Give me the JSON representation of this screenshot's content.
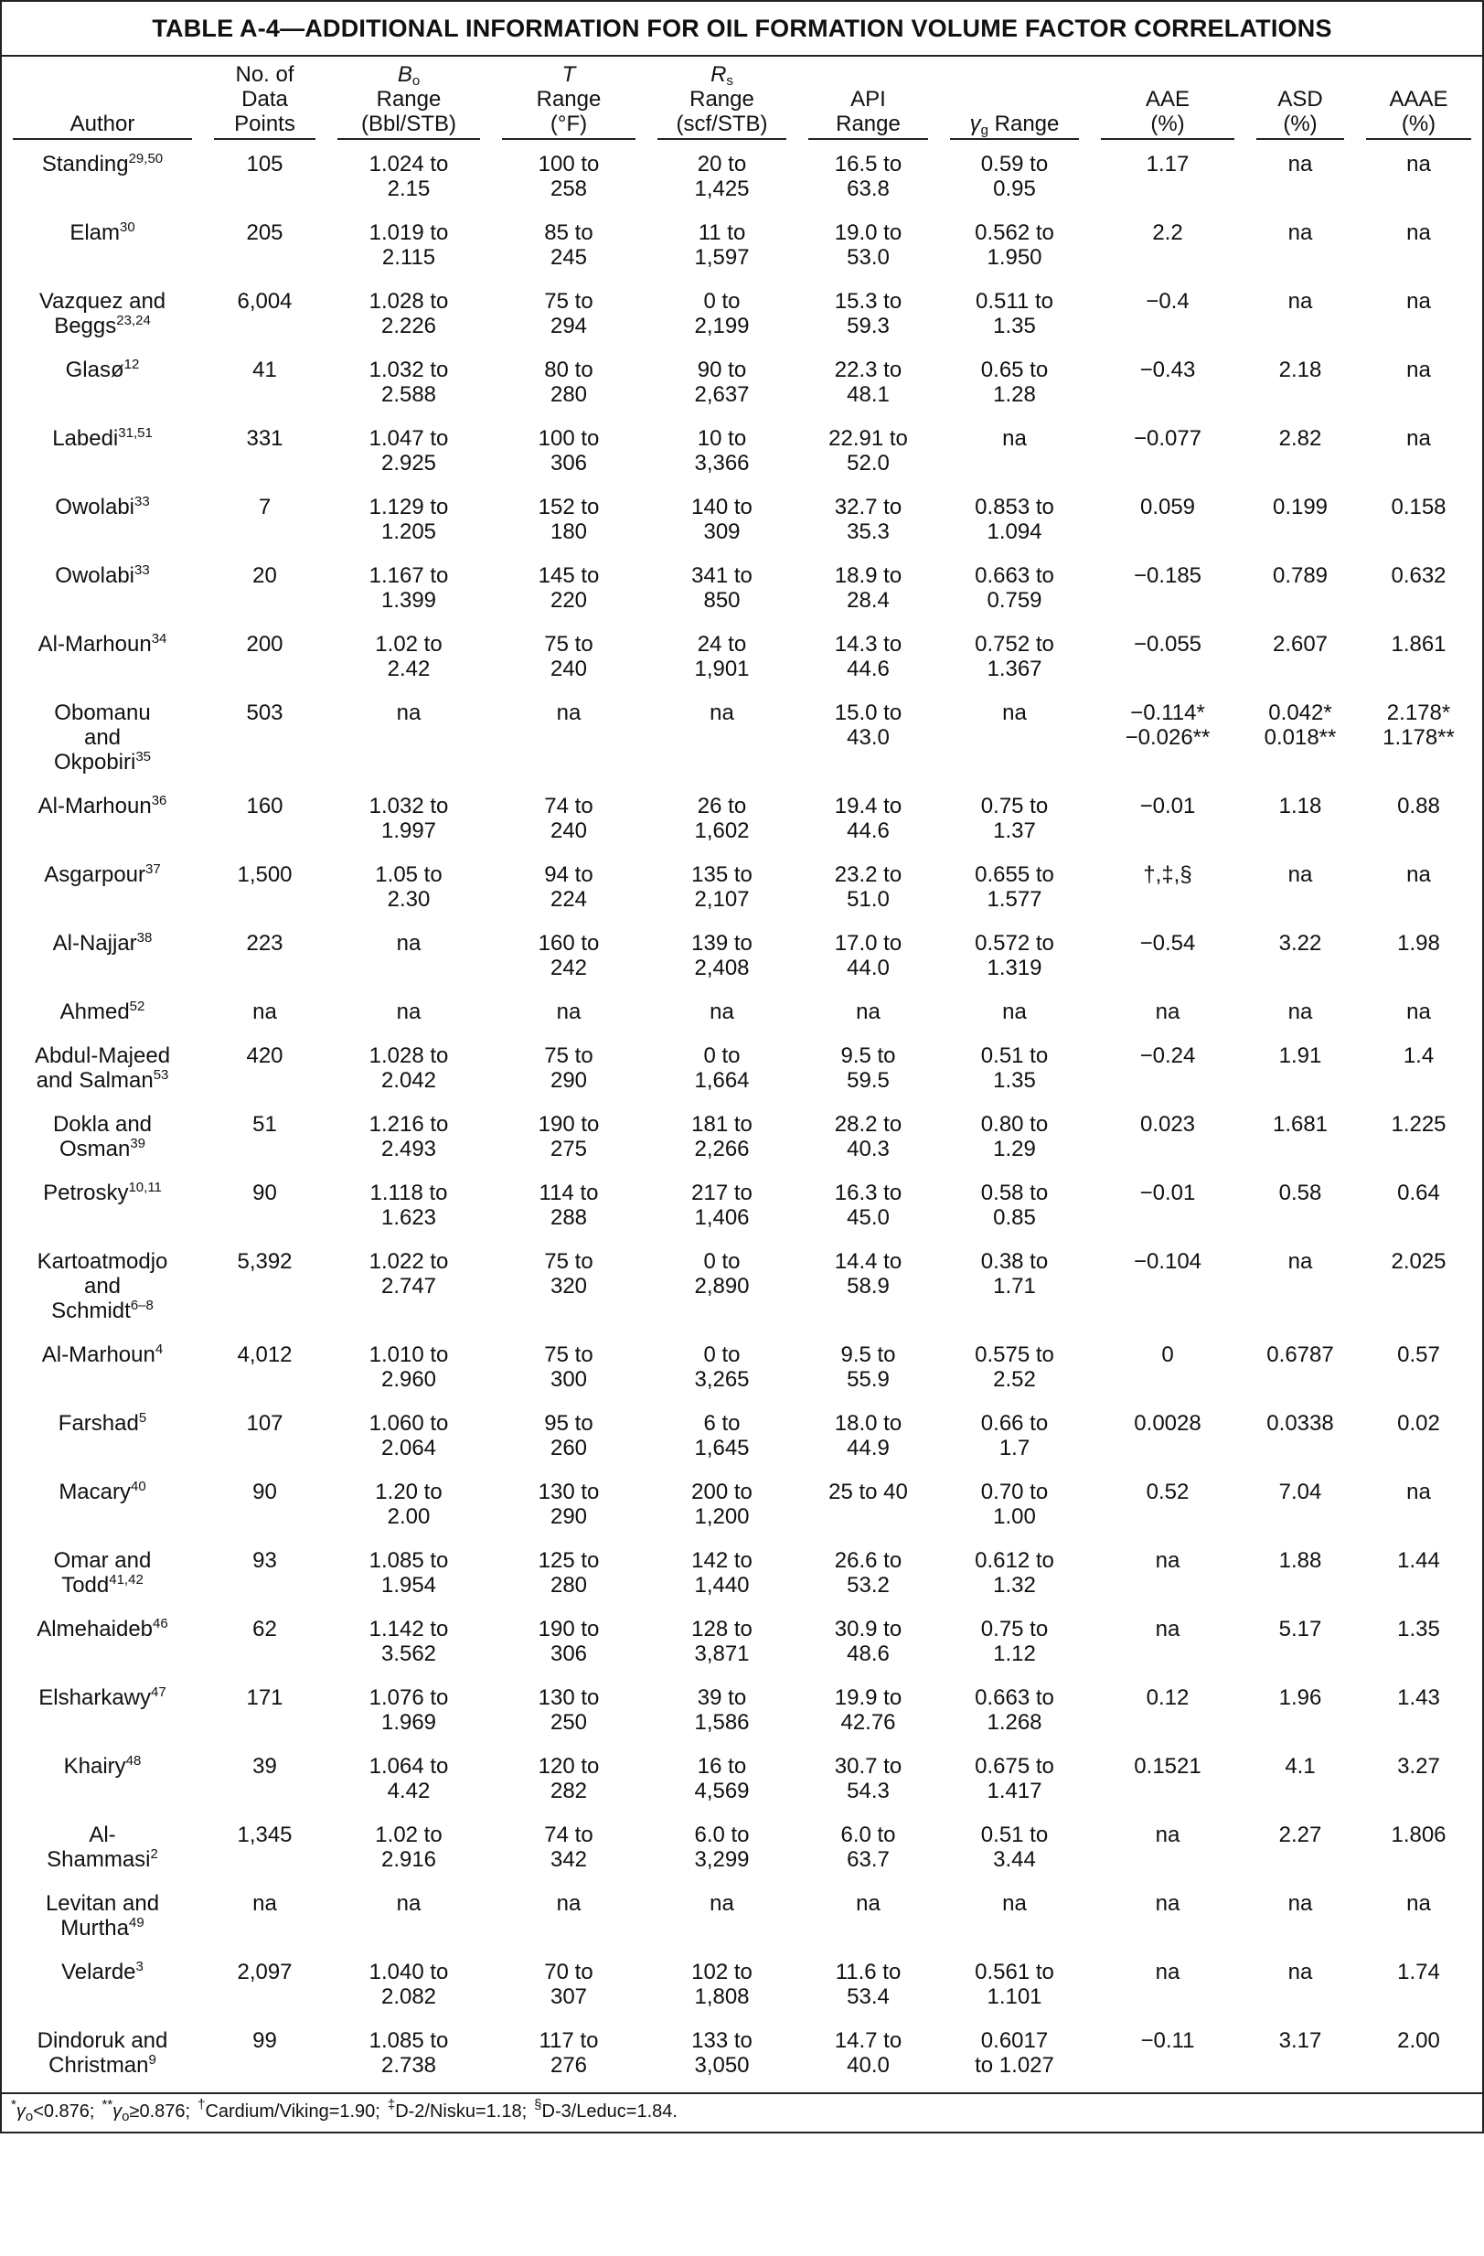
{
  "table": {
    "title": "TABLE A-4—ADDITIONAL INFORMATION FOR OIL FORMATION VOLUME FACTOR CORRELATIONS",
    "headers": [
      {
        "lines": [
          "Author"
        ]
      },
      {
        "lines": [
          "No. of",
          "Data",
          "Points"
        ]
      },
      {
        "symbol": "B",
        "sub": "o",
        "lines": [
          "Range",
          "(Bbl/STB)"
        ]
      },
      {
        "symbol": "T",
        "lines": [
          "Range",
          "(°F)"
        ]
      },
      {
        "symbol": "R",
        "sub": "s",
        "lines": [
          "Range",
          "(scf/STB)"
        ]
      },
      {
        "lines": [
          "API",
          "Range"
        ]
      },
      {
        "symbol": "γ",
        "sub": "g",
        "lines": [
          "Range"
        ]
      },
      {
        "lines": [
          "AAE",
          "(%)"
        ]
      },
      {
        "lines": [
          "ASD",
          "(%)"
        ]
      },
      {
        "lines": [
          "AAAE",
          "(%)"
        ]
      }
    ],
    "rows": [
      {
        "author": {
          "lines": [
            "Standing"
          ],
          "refs": "29,50"
        },
        "cells": [
          "105",
          [
            "1.024 to",
            "2.15"
          ],
          [
            "100 to",
            "258"
          ],
          [
            "20 to",
            "1,425"
          ],
          [
            "16.5 to",
            "63.8"
          ],
          [
            "0.59 to",
            "0.95"
          ],
          "1.17",
          "na",
          "na"
        ]
      },
      {
        "author": {
          "lines": [
            "Elam"
          ],
          "refs": "30"
        },
        "cells": [
          "205",
          [
            "1.019 to",
            "2.115"
          ],
          [
            "85 to",
            "245"
          ],
          [
            "11 to",
            "1,597"
          ],
          [
            "19.0 to",
            "53.0"
          ],
          [
            "0.562 to",
            "1.950"
          ],
          "2.2",
          "na",
          "na"
        ]
      },
      {
        "author": {
          "lines": [
            "Vazquez and",
            "Beggs"
          ],
          "refs": "23,24"
        },
        "cells": [
          "6,004",
          [
            "1.028 to",
            "2.226"
          ],
          [
            "75 to",
            "294"
          ],
          [
            "0 to",
            "2,199"
          ],
          [
            "15.3 to",
            "59.3"
          ],
          [
            "0.511 to",
            "1.35"
          ],
          "−0.4",
          "na",
          "na"
        ]
      },
      {
        "author": {
          "lines": [
            "Glasø"
          ],
          "refs": "12"
        },
        "cells": [
          "41",
          [
            "1.032 to",
            "2.588"
          ],
          [
            "80 to",
            "280"
          ],
          [
            "90 to",
            "2,637"
          ],
          [
            "22.3 to",
            "48.1"
          ],
          [
            "0.65 to",
            "1.28"
          ],
          "−0.43",
          "2.18",
          "na"
        ]
      },
      {
        "author": {
          "lines": [
            "Labedi"
          ],
          "refs": "31,51"
        },
        "cells": [
          "331",
          [
            "1.047 to",
            "2.925"
          ],
          [
            "100 to",
            "306"
          ],
          [
            "10 to",
            "3,366"
          ],
          [
            "22.91 to",
            "52.0"
          ],
          "na",
          "−0.077",
          "2.82",
          "na"
        ]
      },
      {
        "author": {
          "lines": [
            "Owolabi"
          ],
          "refs": "33"
        },
        "cells": [
          "7",
          [
            "1.129 to",
            "1.205"
          ],
          [
            "152 to",
            "180"
          ],
          [
            "140 to",
            "309"
          ],
          [
            "32.7 to",
            "35.3"
          ],
          [
            "0.853 to",
            "1.094"
          ],
          "0.059",
          "0.199",
          "0.158"
        ]
      },
      {
        "author": {
          "lines": [
            "Owolabi"
          ],
          "refs": "33"
        },
        "cells": [
          "20",
          [
            "1.167 to",
            "1.399"
          ],
          [
            "145 to",
            "220"
          ],
          [
            "341 to",
            "850"
          ],
          [
            "18.9 to",
            "28.4"
          ],
          [
            "0.663 to",
            "0.759"
          ],
          "−0.185",
          "0.789",
          "0.632"
        ]
      },
      {
        "author": {
          "lines": [
            "Al-Marhoun"
          ],
          "refs": "34"
        },
        "cells": [
          "200",
          [
            "1.02 to",
            "2.42"
          ],
          [
            "75 to",
            "240"
          ],
          [
            "24 to",
            "1,901"
          ],
          [
            "14.3 to",
            "44.6"
          ],
          [
            "0.752 to",
            "1.367"
          ],
          "−0.055",
          "2.607",
          "1.861"
        ]
      },
      {
        "author": {
          "lines": [
            "Obomanu",
            "and",
            "Okpobiri"
          ],
          "refs": "35"
        },
        "cells": [
          "503",
          "na",
          "na",
          "na",
          [
            "15.0 to",
            "43.0"
          ],
          "na",
          [
            "−0.114*",
            "−0.026**"
          ],
          [
            "0.042*",
            "0.018**"
          ],
          [
            "2.178*",
            "1.178**"
          ]
        ]
      },
      {
        "author": {
          "lines": [
            "Al-Marhoun"
          ],
          "refs": "36"
        },
        "cells": [
          "160",
          [
            "1.032 to",
            "1.997"
          ],
          [
            "74 to",
            "240"
          ],
          [
            "26 to",
            "1,602"
          ],
          [
            "19.4 to",
            "44.6"
          ],
          [
            "0.75 to",
            "1.37"
          ],
          "−0.01",
          "1.18",
          "0.88"
        ]
      },
      {
        "author": {
          "lines": [
            "Asgarpour"
          ],
          "refs": "37"
        },
        "cells": [
          "1,500",
          [
            "1.05 to",
            "2.30"
          ],
          [
            "94 to",
            "224"
          ],
          [
            "135 to",
            "2,107"
          ],
          [
            "23.2 to",
            "51.0"
          ],
          [
            "0.655 to",
            "1.577"
          ],
          "†,‡,§",
          "na",
          "na"
        ]
      },
      {
        "author": {
          "lines": [
            "Al-Najjar"
          ],
          "refs": "38"
        },
        "cells": [
          "223",
          "na",
          [
            "160 to",
            "242"
          ],
          [
            "139 to",
            "2,408"
          ],
          [
            "17.0 to",
            "44.0"
          ],
          [
            "0.572 to",
            "1.319"
          ],
          "−0.54",
          "3.22",
          "1.98"
        ]
      },
      {
        "author": {
          "lines": [
            "Ahmed"
          ],
          "refs": "52"
        },
        "cells": [
          "na",
          "na",
          "na",
          "na",
          "na",
          "na",
          "na",
          "na",
          "na"
        ]
      },
      {
        "author": {
          "lines": [
            "Abdul-Majeed",
            "and Salman"
          ],
          "refs": "53"
        },
        "cells": [
          "420",
          [
            "1.028 to",
            "2.042"
          ],
          [
            "75 to",
            "290"
          ],
          [
            "0 to",
            "1,664"
          ],
          [
            "9.5 to",
            "59.5"
          ],
          [
            "0.51 to",
            "1.35"
          ],
          "−0.24",
          "1.91",
          "1.4"
        ]
      },
      {
        "author": {
          "lines": [
            "Dokla and",
            "Osman"
          ],
          "refs": "39"
        },
        "cells": [
          "51",
          [
            "1.216 to",
            "2.493"
          ],
          [
            "190 to",
            "275"
          ],
          [
            "181 to",
            "2,266"
          ],
          [
            "28.2 to",
            "40.3"
          ],
          [
            "0.80 to",
            "1.29"
          ],
          "0.023",
          "1.681",
          "1.225"
        ]
      },
      {
        "author": {
          "lines": [
            "Petrosky"
          ],
          "refs": "10,11"
        },
        "cells": [
          "90",
          [
            "1.118 to",
            "1.623"
          ],
          [
            "114 to",
            "288"
          ],
          [
            "217 to",
            "1,406"
          ],
          [
            "16.3 to",
            "45.0"
          ],
          [
            "0.58 to",
            "0.85"
          ],
          "−0.01",
          "0.58",
          "0.64"
        ]
      },
      {
        "author": {
          "lines": [
            "Kartoatmodjo",
            "and",
            "Schmidt"
          ],
          "refs": "6–8"
        },
        "cells": [
          "5,392",
          [
            "1.022 to",
            "2.747"
          ],
          [
            "75 to",
            "320"
          ],
          [
            "0 to",
            "2,890"
          ],
          [
            "14.4 to",
            "58.9"
          ],
          [
            "0.38 to",
            "1.71"
          ],
          "−0.104",
          "na",
          "2.025"
        ]
      },
      {
        "author": {
          "lines": [
            "Al-Marhoun"
          ],
          "refs": "4"
        },
        "cells": [
          "4,012",
          [
            "1.010 to",
            "2.960"
          ],
          [
            "75 to",
            "300"
          ],
          [
            "0 to",
            "3,265"
          ],
          [
            "9.5 to",
            "55.9"
          ],
          [
            "0.575 to",
            "2.52"
          ],
          "0",
          "0.6787",
          "0.57"
        ]
      },
      {
        "author": {
          "lines": [
            "Farshad"
          ],
          "refs": "5"
        },
        "cells": [
          "107",
          [
            "1.060 to",
            "2.064"
          ],
          [
            "95 to",
            "260"
          ],
          [
            "6 to",
            "1,645"
          ],
          [
            "18.0 to",
            "44.9"
          ],
          [
            "0.66 to",
            "1.7"
          ],
          "0.0028",
          "0.0338",
          "0.02"
        ]
      },
      {
        "author": {
          "lines": [
            "Macary"
          ],
          "refs": "40"
        },
        "cells": [
          "90",
          [
            "1.20 to",
            "2.00"
          ],
          [
            "130 to",
            "290"
          ],
          [
            "200 to",
            "1,200"
          ],
          "25 to 40",
          [
            "0.70 to",
            "1.00"
          ],
          "0.52",
          "7.04",
          "na"
        ]
      },
      {
        "author": {
          "lines": [
            "Omar and",
            "Todd"
          ],
          "refs": "41,42"
        },
        "cells": [
          "93",
          [
            "1.085 to",
            "1.954"
          ],
          [
            "125 to",
            "280"
          ],
          [
            "142 to",
            "1,440"
          ],
          [
            "26.6 to",
            "53.2"
          ],
          [
            "0.612 to",
            "1.32"
          ],
          "na",
          "1.88",
          "1.44"
        ]
      },
      {
        "author": {
          "lines": [
            "Almehaideb"
          ],
          "refs": "46"
        },
        "cells": [
          "62",
          [
            "1.142 to",
            "3.562"
          ],
          [
            "190 to",
            "306"
          ],
          [
            "128 to",
            "3,871"
          ],
          [
            "30.9 to",
            "48.6"
          ],
          [
            "0.75 to",
            "1.12"
          ],
          "na",
          "5.17",
          "1.35"
        ]
      },
      {
        "author": {
          "lines": [
            "Elsharkawy"
          ],
          "refs": "47"
        },
        "cells": [
          "171",
          [
            "1.076 to",
            "1.969"
          ],
          [
            "130 to",
            "250"
          ],
          [
            "39 to",
            "1,586"
          ],
          [
            "19.9 to",
            "42.76"
          ],
          [
            "0.663 to",
            "1.268"
          ],
          "0.12",
          "1.96",
          "1.43"
        ]
      },
      {
        "author": {
          "lines": [
            "Khairy"
          ],
          "refs": "48"
        },
        "cells": [
          "39",
          [
            "1.064 to",
            "4.42"
          ],
          [
            "120 to",
            "282"
          ],
          [
            "16 to",
            "4,569"
          ],
          [
            "30.7 to",
            "54.3"
          ],
          [
            "0.675 to",
            "1.417"
          ],
          "0.1521",
          "4.1",
          "3.27"
        ]
      },
      {
        "author": {
          "lines": [
            "Al-",
            "Shammasi"
          ],
          "refs": "2"
        },
        "cells": [
          "1,345",
          [
            "1.02 to",
            "2.916"
          ],
          [
            "74 to",
            "342"
          ],
          [
            "6.0 to",
            "3,299"
          ],
          [
            "6.0 to",
            "63.7"
          ],
          [
            "0.51 to",
            "3.44"
          ],
          "na",
          "2.27",
          "1.806"
        ]
      },
      {
        "author": {
          "lines": [
            "Levitan and",
            "Murtha"
          ],
          "refs": "49"
        },
        "cells": [
          "na",
          "na",
          "na",
          "na",
          "na",
          "na",
          "na",
          "na",
          "na"
        ]
      },
      {
        "author": {
          "lines": [
            "Velarde"
          ],
          "refs": "3"
        },
        "cells": [
          "2,097",
          [
            "1.040 to",
            "2.082"
          ],
          [
            "70 to",
            "307"
          ],
          [
            "102 to",
            "1,808"
          ],
          [
            "11.6 to",
            "53.4"
          ],
          [
            "0.561 to",
            "1.101"
          ],
          "na",
          "na",
          "1.74"
        ]
      },
      {
        "author": {
          "lines": [
            "Dindoruk and",
            "Christman"
          ],
          "refs": "9"
        },
        "cells": [
          "99",
          [
            "1.085 to",
            "2.738"
          ],
          [
            "117 to",
            "276"
          ],
          [
            "133 to",
            "3,050"
          ],
          [
            "14.7 to",
            "40.0"
          ],
          [
            "0.6017",
            "to 1.027"
          ],
          "−0.11",
          "3.17",
          "2.00"
        ]
      }
    ],
    "footnotes": [
      {
        "symbol": "*",
        "var": "γ",
        "sub": "o",
        "text": "<0.876;"
      },
      {
        "symbol": "**",
        "var": "γ",
        "sub": "o",
        "text": "≥0.876;"
      },
      {
        "symbol": "†",
        "text": "Cardium/Viking=1.90;"
      },
      {
        "symbol": "‡",
        "text": "D-2/Nisku=1.18;"
      },
      {
        "symbol": "§",
        "text": "D-3/Leduc=1.84."
      }
    ]
  }
}
